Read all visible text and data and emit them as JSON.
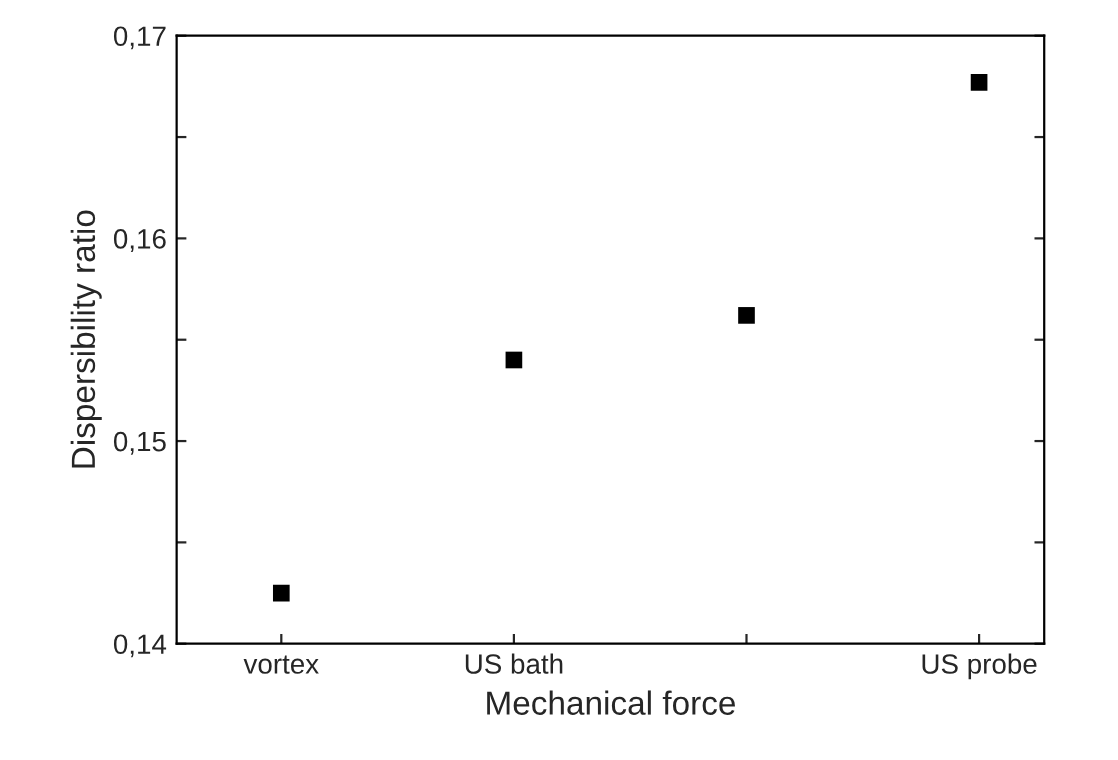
{
  "chart_data": {
    "type": "scatter",
    "xlabel": "Mechanical force",
    "ylabel": "Dispersibility ratio",
    "categories": [
      "vortex",
      "US bath",
      null,
      "US probe"
    ],
    "series": [
      {
        "color": "#000000",
        "values": [
          0.1425,
          0.154,
          0.1562,
          0.1677
        ]
      }
    ],
    "marker": "square",
    "grid": false,
    "legend": false,
    "ylim": [
      0.14,
      0.17
    ],
    "yticks": [
      {
        "value": 0.14,
        "label": "0,14"
      },
      {
        "value": 0.145,
        "label": null
      },
      {
        "value": 0.15,
        "label": "0,15"
      },
      {
        "value": 0.155,
        "label": null
      },
      {
        "value": 0.16,
        "label": "0,16"
      },
      {
        "value": 0.165,
        "label": null
      },
      {
        "value": 0.17,
        "label": "0,17"
      }
    ]
  }
}
